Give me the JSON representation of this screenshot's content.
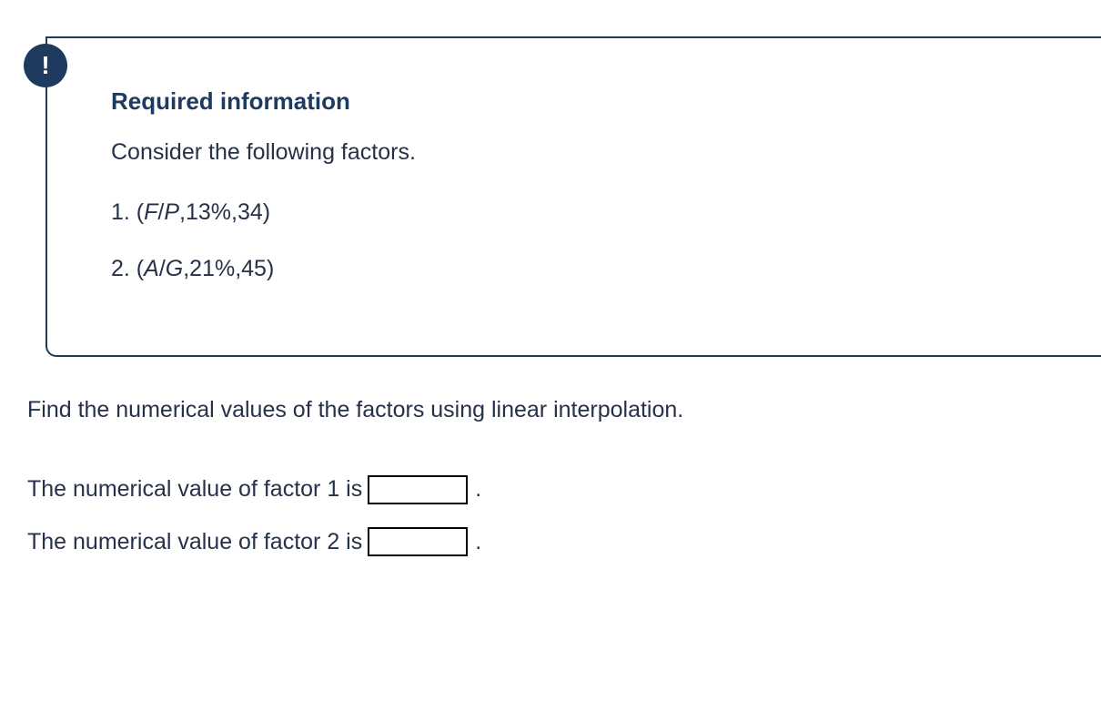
{
  "infobox": {
    "icon_char": "!",
    "heading": "Required information",
    "intro": "Consider the following factors.",
    "factor1_prefix": "1. (",
    "factor1_italic1": "F",
    "factor1_slash": "/",
    "factor1_italic2": "P",
    "factor1_rest": ",13%,34)",
    "factor2_prefix": "2. (",
    "factor2_italic1": "A",
    "factor2_slash": "/",
    "factor2_italic2": "G",
    "factor2_rest": ",21%,45)"
  },
  "instruction": "Find the numerical values of the factors using linear interpolation.",
  "answer1": {
    "label": "The numerical value of factor 1 is",
    "value": "",
    "period": "."
  },
  "answer2": {
    "label": "The numerical value of factor 2 is",
    "value": "",
    "period": "."
  },
  "colors": {
    "accent": "#1f3a5f",
    "text": "#26324a",
    "border_input": "#000000",
    "background": "#ffffff"
  }
}
